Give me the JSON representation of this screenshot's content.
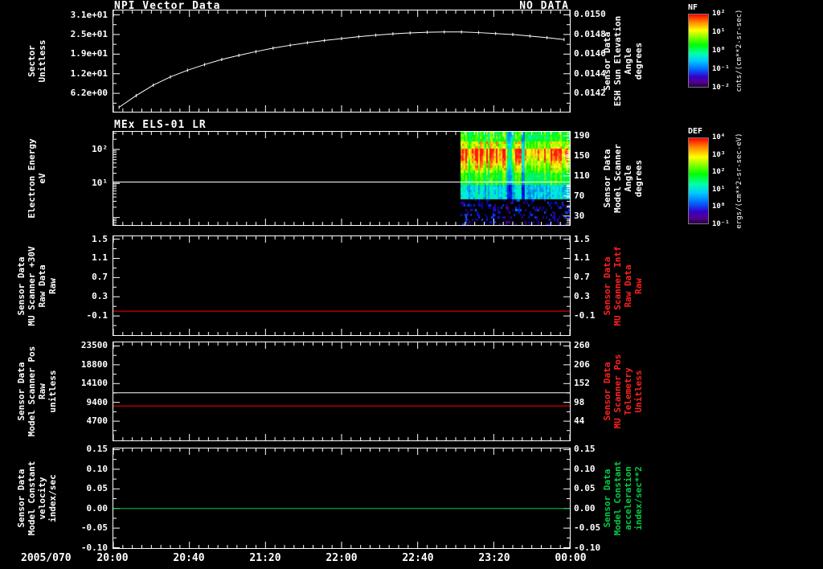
{
  "colors": {
    "background": "#000000",
    "axis": "#ffffff",
    "red_line": "#ff0000",
    "red_label": "#ff2020",
    "green_line": "#00cc44",
    "green_label": "#00cc44"
  },
  "xaxis": {
    "date_label": "2005/070",
    "tick_labels": [
      "20:00",
      "20:40",
      "21:20",
      "22:00",
      "22:40",
      "23:20",
      "00:00"
    ]
  },
  "colorbars": [
    {
      "title": "NF",
      "unit_label": "cnts/(cm**2-sr-sec)",
      "tick_labels": [
        "10²",
        "10¹",
        "10⁰",
        "10⁻¹",
        "10⁻²"
      ]
    },
    {
      "title": "DEF",
      "unit_label": "ergs/(cm**2-sr-sec-eV)",
      "tick_labels": [
        "10⁴",
        "10³",
        "10²",
        "10¹",
        "10⁰",
        "10⁻¹"
      ]
    }
  ],
  "panels": [
    {
      "title": "NPI Vector Data",
      "no_data_label": "NO DATA",
      "left_label_lines": [
        "Sector",
        "Unitless"
      ],
      "right_label_lines": [
        "Sensor Data",
        "ESH Sun Elevation",
        "Angle",
        "degrees"
      ],
      "right_label_color": "#ffffff"
    },
    {
      "title": "MEx ELS-01 LR",
      "left_label_lines": [
        "Electron Energy",
        "eV"
      ],
      "right_label_lines": [
        "Sensor Data",
        "Model Scanner",
        "Angle",
        "degrees"
      ],
      "right_label_color": "#ffffff"
    },
    {
      "left_label_lines": [
        "Sensor Data",
        "MU Scanner +30V",
        "Raw Data",
        "Raw"
      ],
      "right_label_lines": [
        "Sensor Data",
        "MU Scanner Intf",
        "Raw Data",
        "Raw"
      ],
      "right_label_color": "#ff2020"
    },
    {
      "left_label_lines": [
        "Sensor Data",
        "Model Scanner Pos",
        "Raw",
        "unitless"
      ],
      "right_label_lines": [
        "Sensor Data",
        "MU Scanner Pos",
        "Telemetry",
        "Unitless"
      ],
      "right_label_color": "#ff2020"
    },
    {
      "left_label_lines": [
        "Sensor Data",
        "Model Constant",
        "velocity",
        "index/sec"
      ],
      "right_label_lines": [
        "Sensor Data",
        "Model Constant",
        "acceleration",
        "index/sec**2"
      ],
      "right_label_color": "#00cc44"
    }
  ],
  "chart_data": [
    {
      "type": "line",
      "title": "NPI Vector Data",
      "status": "NO DATA",
      "ylabel": "Sector Unitless",
      "y2label": "Sensor Data ESH Sun Elevation Angle degrees",
      "xlim": [
        0,
        4
      ],
      "ylim": [
        0.4,
        32.4
      ],
      "y2lim": [
        0.014013,
        0.015045
      ],
      "yticks": [
        {
          "v": 31,
          "label": "3.1e+01"
        },
        {
          "v": 24.8,
          "label": "2.5e+01"
        },
        {
          "v": 18.6,
          "label": "1.9e+01"
        },
        {
          "v": 12.4,
          "label": "1.2e+01"
        },
        {
          "v": 6.2,
          "label": "6.2e+00"
        }
      ],
      "y2ticks": [
        {
          "v": 0.015,
          "label": "0.0150"
        },
        {
          "v": 0.0148,
          "label": "0.0148"
        },
        {
          "v": 0.0146,
          "label": "0.0146"
        },
        {
          "v": 0.0144,
          "label": "0.0144"
        },
        {
          "v": 0.0142,
          "label": "0.0142"
        }
      ],
      "series": [
        {
          "name": "sun-elevation-curve",
          "color": "#ffffff",
          "x": [
            0.05,
            0.2,
            0.35,
            0.5,
            0.65,
            0.8,
            0.95,
            1.1,
            1.25,
            1.4,
            1.55,
            1.7,
            1.85,
            2.0,
            2.15,
            2.3,
            2.45,
            2.6,
            2.75,
            2.9,
            3.05,
            3.2,
            3.35,
            3.5,
            3.65,
            3.8,
            3.95
          ],
          "y": [
            1.8,
            5.5,
            8.8,
            11.4,
            13.5,
            15.3,
            16.9,
            18.2,
            19.4,
            20.5,
            21.4,
            22.2,
            22.9,
            23.5,
            24.1,
            24.6,
            25.0,
            25.3,
            25.5,
            25.6,
            25.6,
            25.4,
            25.1,
            24.8,
            24.3,
            23.8,
            23.2
          ]
        }
      ]
    },
    {
      "type": "heatmap",
      "title": "MEx ELS-01 LR",
      "ylabel": "Electron Energy eV",
      "y2label": "Sensor Data Model Scanner Angle degrees",
      "ylog": true,
      "xlim": [
        0,
        4
      ],
      "ylim": [
        0.6,
        330
      ],
      "y2lim": [
        12,
        198
      ],
      "yticks": [
        {
          "v": 100,
          "label": "10²"
        },
        {
          "v": 10,
          "label": "10¹"
        }
      ],
      "y2ticks": [
        {
          "v": 190,
          "label": "190"
        },
        {
          "v": 150,
          "label": "150"
        },
        {
          "v": 110,
          "label": "110"
        },
        {
          "v": 70,
          "label": "70"
        },
        {
          "v": 30,
          "label": "30"
        }
      ],
      "hlines": [
        {
          "v": 11,
          "color": "#ffffff"
        }
      ],
      "spectrogram": {
        "x_start_frac": 0.76,
        "t_start": "23:00",
        "t_end": "00:00",
        "energy_range_eV": [
          0.6,
          330
        ],
        "hot_band_energy_eV": [
          20,
          120
        ],
        "note": "intense red-yellow flux band over green background, sparse blue-purple speckles at low energies"
      }
    },
    {
      "type": "line",
      "ylabel": "Sensor Data MU Scanner +30V Raw Data Raw",
      "y2label": "Sensor Data MU Scanner Intf Raw Data Raw",
      "xlim": [
        0,
        4
      ],
      "ylim": [
        -0.5,
        1.56
      ],
      "yticks": [
        {
          "v": 1.5,
          "label": "1.5"
        },
        {
          "v": 1.1,
          "label": "1.1"
        },
        {
          "v": 0.7,
          "label": "0.7"
        },
        {
          "v": 0.3,
          "label": "0.3"
        },
        {
          "v": -0.1,
          "label": "-0.1"
        }
      ],
      "y2ticks": [
        {
          "v": 1.5,
          "label": "1.5"
        },
        {
          "v": 1.1,
          "label": "1.1"
        },
        {
          "v": 0.7,
          "label": "0.7"
        },
        {
          "v": 0.3,
          "label": "0.3"
        },
        {
          "v": -0.1,
          "label": "-0.1"
        }
      ],
      "hlines": [
        {
          "v": 0.0,
          "color": "#ff0000"
        }
      ]
    },
    {
      "type": "line",
      "ylabel": "Sensor Data Model Scanner Pos Raw unitless",
      "y2label": "Sensor Data MU Scanner Pos Telemetry Unitless",
      "xlim": [
        0,
        4
      ],
      "ylim": [
        -100,
        24400
      ],
      "y2lim": [
        -11.2,
        270.3
      ],
      "yticks": [
        {
          "v": 23500,
          "label": "23500"
        },
        {
          "v": 18800,
          "label": "18800"
        },
        {
          "v": 14100,
          "label": "14100"
        },
        {
          "v": 9400,
          "label": "9400"
        },
        {
          "v": 4700,
          "label": "4700"
        }
      ],
      "y2ticks": [
        {
          "v": 260,
          "label": "260"
        },
        {
          "v": 206,
          "label": "206"
        },
        {
          "v": 152,
          "label": "152"
        },
        {
          "v": 98,
          "label": "98"
        },
        {
          "v": 44,
          "label": "44"
        }
      ],
      "hlines": [
        {
          "v": 11800,
          "color": "#ffffff"
        },
        {
          "v": 8500,
          "color": "#ff0000"
        }
      ]
    },
    {
      "type": "line",
      "ylabel": "Sensor Data Model Constant velocity index/sec",
      "y2label": "Sensor Data Model Constant acceleration index/sec**2",
      "xlim": [
        0,
        4
      ],
      "ylim": [
        -0.101,
        0.153
      ],
      "yticks": [
        {
          "v": 0.15,
          "label": "0.15"
        },
        {
          "v": 0.1,
          "label": "0.10"
        },
        {
          "v": 0.05,
          "label": "0.05"
        },
        {
          "v": 0.0,
          "label": "0.00"
        },
        {
          "v": -0.05,
          "label": "-0.05"
        },
        {
          "v": -0.1,
          "label": "-0.10"
        }
      ],
      "y2ticks": [
        {
          "v": 0.15,
          "label": "0.15"
        },
        {
          "v": 0.1,
          "label": "0.10"
        },
        {
          "v": 0.05,
          "label": "0.05"
        },
        {
          "v": 0.0,
          "label": "0.00"
        },
        {
          "v": -0.05,
          "label": "-0.05"
        },
        {
          "v": -0.1,
          "label": "-0.10"
        }
      ],
      "hlines": [
        {
          "v": 0.0,
          "color": "#00cc44"
        }
      ]
    }
  ]
}
